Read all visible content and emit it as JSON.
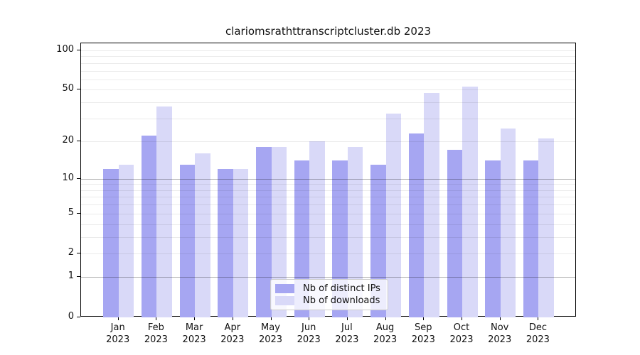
{
  "chart_data": {
    "type": "bar",
    "title": "clariomsrathttranscriptcluster.db 2023",
    "categories": [
      "Jan 2023",
      "Feb 2023",
      "Mar 2023",
      "Apr 2023",
      "May 2023",
      "Jun 2023",
      "Jul 2023",
      "Aug 2023",
      "Sep 2023",
      "Oct 2023",
      "Nov 2023",
      "Dec 2023"
    ],
    "series": [
      {
        "name": "Nb of distinct IPs",
        "color": "#a6a6f2",
        "values": [
          12,
          22,
          13,
          12,
          18,
          14,
          14,
          13,
          23,
          17,
          14,
          14
        ]
      },
      {
        "name": "Nb of downloads",
        "color": "#d9d9f8",
        "values": [
          13,
          37,
          16,
          12,
          18,
          20,
          18,
          33,
          47,
          53,
          25,
          21
        ]
      }
    ],
    "xlabel": "",
    "ylabel": "",
    "yscale": "log1p",
    "ylim": [
      0,
      113
    ],
    "yticks": [
      0,
      1,
      2,
      5,
      10,
      20,
      50,
      100
    ],
    "grid": {
      "major": [
        1,
        10
      ],
      "minor": [
        2,
        3,
        4,
        5,
        6,
        7,
        8,
        9,
        20,
        30,
        40,
        50,
        60,
        70,
        80,
        90,
        100
      ],
      "drawn_over_bars": true
    },
    "legend_position": "lower center",
    "colors": {
      "axis": "#000000",
      "major_grid": "rgba(0,0,0,0.30)",
      "minor_grid": "rgba(0,0,0,0.08)"
    }
  }
}
